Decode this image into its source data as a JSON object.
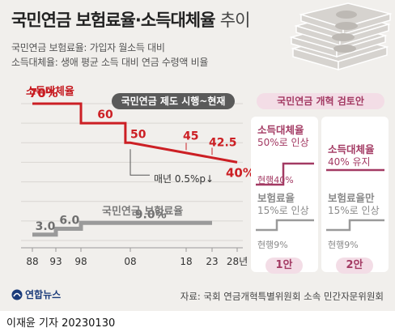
{
  "header": {
    "title_bold": "국민연금 보험료율·소득대체율",
    "title_light": "추이",
    "line1": "국민연금 보험료율: 가입자 월소득 대비",
    "line2": "소득대체율: 생애 평균 소득 대비 연금 수령액 비율"
  },
  "colors": {
    "replacement": "#cc1f24",
    "contribution": "#9a9a9a",
    "reform_accent": "#a33a63",
    "reform_header_bg": "#f3dde6"
  },
  "chart_data": {
    "type": "line",
    "x_ticks": [
      "88",
      "93",
      "98",
      "08",
      "18",
      "23",
      "28년"
    ],
    "ylim": [
      0,
      70
    ],
    "series": [
      {
        "name": "소득대체율",
        "points": [
          {
            "x": 1988,
            "y": 70
          },
          {
            "x": 1998,
            "y": 70
          },
          {
            "x": 1998,
            "y": 60
          },
          {
            "x": 2007,
            "y": 60
          },
          {
            "x": 2007,
            "y": 50
          },
          {
            "x": 2008,
            "y": 50
          },
          {
            "x": 2028,
            "y": 40
          }
        ],
        "labels": [
          {
            "text": "70%",
            "x": 1989,
            "y": 70
          },
          {
            "text": "60",
            "x": 2001,
            "y": 60
          },
          {
            "text": "50",
            "x": 2008,
            "y": 50
          },
          {
            "text": "45",
            "x": 2018,
            "y": 45
          },
          {
            "text": "42.5",
            "x": 2023,
            "y": 42.5
          },
          {
            "text": "40%",
            "x": 2028,
            "y": 40
          }
        ]
      },
      {
        "name": "국민연금 보험료율",
        "points": [
          {
            "x": 1988,
            "y": 3.0
          },
          {
            "x": 1993,
            "y": 3.0
          },
          {
            "x": 1993,
            "y": 6.0
          },
          {
            "x": 1998,
            "y": 6.0
          },
          {
            "x": 1998,
            "y": 9.0
          },
          {
            "x": 2023,
            "y": 9.0
          }
        ],
        "labels": [
          {
            "text": "3.0",
            "x": 1990,
            "y": 3.0
          },
          {
            "text": "6.0",
            "x": 1995,
            "y": 6.0
          },
          {
            "text": "9.0%",
            "x": 2010,
            "y": 9.0
          }
        ]
      }
    ],
    "series_label_replacement": "소득대체율",
    "series_label_contribution": "국민연금 보험료율",
    "annotation_period": "국민연금 제도 시행~현재",
    "annotation_decline": "매년 0.5%p↓"
  },
  "reform": {
    "header": "국민연금 개혁 검토안",
    "plans": [
      {
        "name": "1안",
        "replacement_title": "소득대체율",
        "replacement_change": "50%로 인상",
        "replacement_current": "현행40%",
        "contribution_title": "보험료율",
        "contribution_change": "15%로 인상",
        "contribution_current": "현행9%"
      },
      {
        "name": "2안",
        "replacement_title": "소득대체율",
        "replacement_change": "40% 유지",
        "contribution_title": "보험료율만",
        "contribution_change": "15%로 인상",
        "contribution_current": "현행9%"
      }
    ]
  },
  "source": "자료: 국회 연금개혁특별위원회 소속 민간자문위원회",
  "logo_text": "연합뉴스",
  "credit": "이재윤 기자  20230130"
}
